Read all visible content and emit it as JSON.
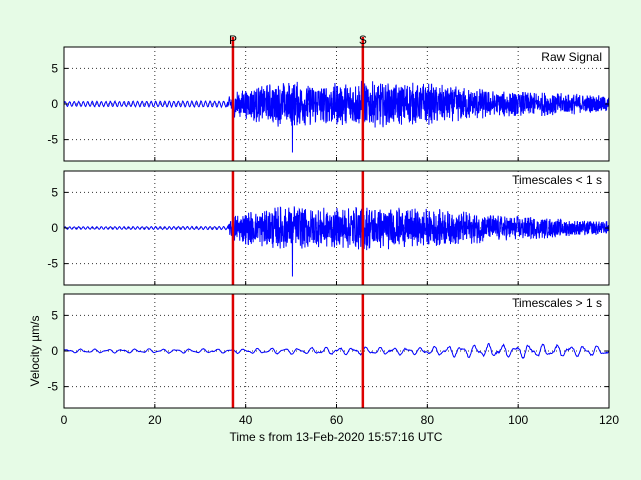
{
  "chart_data": {
    "type": "line",
    "xlabel": "Time s from 13-Feb-2020 15:57:16 UTC",
    "ylabel": "Velocity µm/s",
    "xlim": [
      0,
      120
    ],
    "xticks": [
      0,
      20,
      40,
      60,
      80,
      100,
      120
    ],
    "grid": true,
    "trace_color": "#0000ff",
    "pick_color": "#dd0000",
    "background_color": "#e6fbe6",
    "picks": [
      {
        "label": "P",
        "time": 37.2
      },
      {
        "label": "S",
        "time": 65.8
      }
    ],
    "panels": [
      {
        "label": "Raw Signal",
        "ylim": [
          -8,
          8
        ],
        "yticks": [
          5,
          0,
          -5
        ],
        "envelope": [
          {
            "t": 0,
            "amp": 0.4
          },
          {
            "t": 36,
            "amp": 0.5
          },
          {
            "t": 37,
            "amp": 2.0
          },
          {
            "t": 48,
            "amp": 3.3
          },
          {
            "t": 50.4,
            "amp": 3.4
          },
          {
            "t": 56,
            "amp": 2.9
          },
          {
            "t": 66,
            "amp": 3.4
          },
          {
            "t": 80,
            "amp": 3.0
          },
          {
            "t": 95,
            "amp": 2.0
          },
          {
            "t": 110,
            "amp": 1.6
          },
          {
            "t": 120,
            "amp": 1.2
          }
        ],
        "spike": {
          "t": 50.3,
          "value": -6.8
        }
      },
      {
        "label": "Timescales < 1 s",
        "ylim": [
          -8,
          8
        ],
        "yticks": [
          5,
          0,
          -5
        ],
        "envelope": [
          {
            "t": 0,
            "amp": 0.2
          },
          {
            "t": 36,
            "amp": 0.25
          },
          {
            "t": 37,
            "amp": 2.0
          },
          {
            "t": 48,
            "amp": 3.2
          },
          {
            "t": 50.4,
            "amp": 3.3
          },
          {
            "t": 56,
            "amp": 2.8
          },
          {
            "t": 66,
            "amp": 3.2
          },
          {
            "t": 80,
            "amp": 2.8
          },
          {
            "t": 95,
            "amp": 2.0
          },
          {
            "t": 110,
            "amp": 1.3
          },
          {
            "t": 120,
            "amp": 1.0
          }
        ],
        "spike": {
          "t": 50.3,
          "value": -6.8
        }
      },
      {
        "label": "Timescales > 1 s",
        "ylim": [
          -8,
          8
        ],
        "yticks": [
          5,
          0,
          -5
        ],
        "envelope": [
          {
            "t": 0,
            "amp": 0.3
          },
          {
            "t": 36,
            "amp": 0.35
          },
          {
            "t": 40,
            "amp": 0.4
          },
          {
            "t": 60,
            "amp": 0.6
          },
          {
            "t": 80,
            "amp": 0.6
          },
          {
            "t": 88,
            "amp": 1.0
          },
          {
            "t": 100,
            "amp": 1.1
          },
          {
            "t": 120,
            "amp": 0.8
          }
        ]
      }
    ]
  }
}
